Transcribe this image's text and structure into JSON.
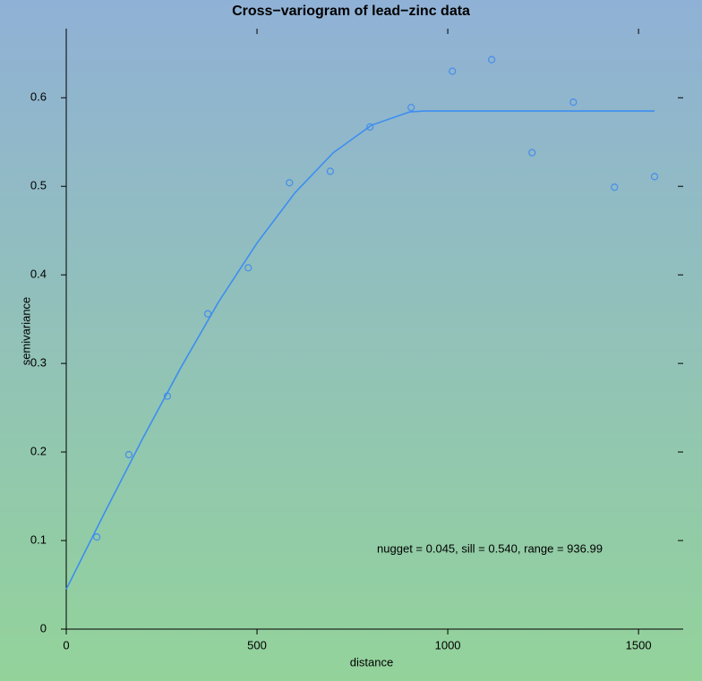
{
  "chart_data": {
    "type": "scatter",
    "title": "Cross−variogram of lead−zinc data",
    "x_label": "distance",
    "y_label": "semivariance",
    "annotation": "nugget = 0.045, sill = 0.540, range = 936.99",
    "annotation_color": "#c0392b",
    "xlim": [
      0,
      1603
    ],
    "ylim": [
      0,
      0.672
    ],
    "xticks": [
      0,
      500,
      1000,
      1500
    ],
    "yticks": [
      0,
      0.1,
      0.2,
      0.3,
      0.4,
      0.5,
      0.6
    ],
    "series": [
      {
        "type": "scatter",
        "color": "#4a90e8",
        "x": [
          80,
          164,
          265,
          371,
          477,
          585,
          692,
          796,
          904,
          1012,
          1115,
          1221,
          1329,
          1437,
          1542
        ],
        "values": [
          0.104,
          0.197,
          0.263,
          0.356,
          0.408,
          0.504,
          0.517,
          0.567,
          0.589,
          0.63,
          0.643,
          0.538,
          0.595,
          0.499,
          0.511
        ]
      },
      {
        "type": "line",
        "color": "#3d8ef0",
        "x": [
          0,
          50,
          100,
          200,
          300,
          400,
          500,
          600,
          700,
          800,
          900,
          936.99,
          1542
        ],
        "values": [
          0.045,
          0.088,
          0.131,
          0.215,
          0.295,
          0.37,
          0.436,
          0.493,
          0.538,
          0.569,
          0.584,
          0.585,
          0.585
        ]
      }
    ]
  }
}
